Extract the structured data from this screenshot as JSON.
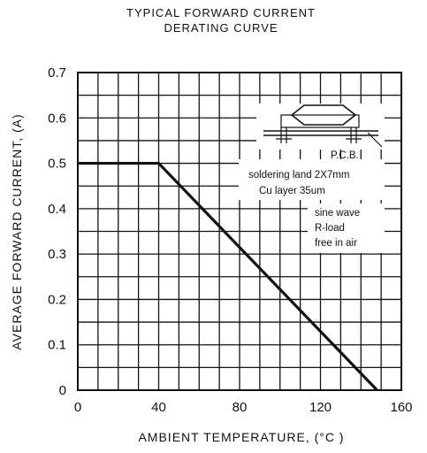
{
  "chart_data": {
    "type": "line",
    "title_line1": "TYPICAL FORWARD CURRENT",
    "title_line2": "DERATING CURVE",
    "xlabel": "AMBIENT TEMPERATURE, (°C )",
    "ylabel": "AVERAGE FORWARD CURRENT, (A)",
    "xlim": [
      0,
      160
    ],
    "ylim": [
      0,
      0.7
    ],
    "x_ticks": [
      0,
      40,
      80,
      120,
      160
    ],
    "y_ticks": [
      "0",
      "0.1",
      "0.2",
      "0.3",
      "0.4",
      "0.5",
      "0.6",
      "0.7"
    ],
    "grid": true,
    "series": [
      {
        "x": [
          0,
          40,
          148
        ],
        "y": [
          0.5,
          0.5,
          0.0
        ]
      }
    ],
    "annotations": {
      "pcb": "P.C.B.",
      "solder_land": "soldering land 2X7mm",
      "cu_layer": "Cu layer 35um",
      "sine_wave": "sine wave",
      "r_load": "R-load",
      "free_air": "free in air"
    },
    "line_color": "#111111"
  }
}
